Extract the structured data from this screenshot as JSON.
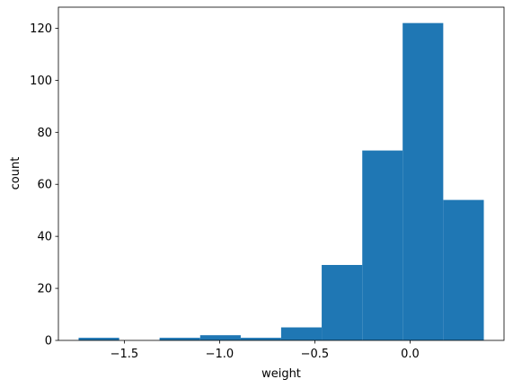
{
  "chart_data": {
    "type": "histogram",
    "x_label": "weight",
    "y_label": "count",
    "bins": [
      -1.74,
      -1.527,
      -1.315,
      -1.102,
      -0.889,
      -0.677,
      -0.464,
      -0.251,
      -0.039,
      0.174,
      0.387
    ],
    "counts": [
      1,
      0,
      1,
      2,
      1,
      5,
      29,
      73,
      122,
      54
    ],
    "color": "#1f77b4",
    "xlim": [
      -1.846,
      0.493
    ],
    "ylim": [
      0,
      128.1
    ],
    "xticks": [
      {
        "value": -1.5,
        "label": "−1.5"
      },
      {
        "value": -1.0,
        "label": "−1.0"
      },
      {
        "value": -0.5,
        "label": "−0.5"
      },
      {
        "value": 0.0,
        "label": "0.0"
      }
    ],
    "yticks": [
      0,
      20,
      40,
      60,
      80,
      100,
      120
    ]
  }
}
